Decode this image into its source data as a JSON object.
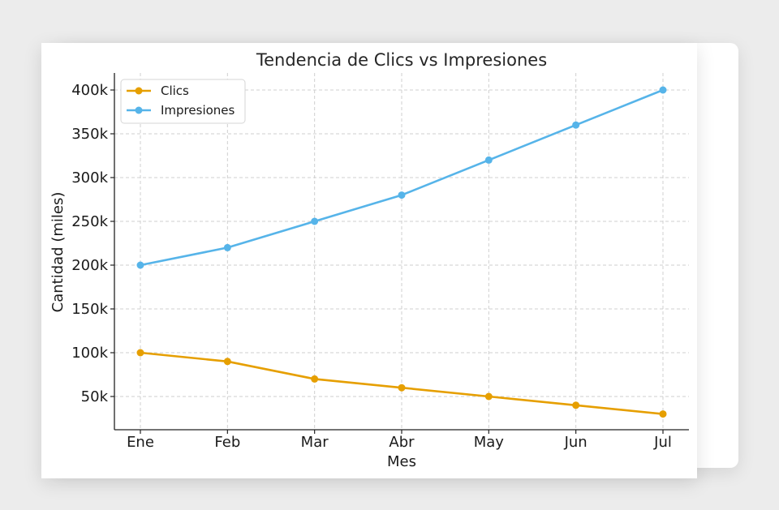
{
  "chart_data": {
    "type": "line",
    "title": "Tendencia de Clics vs Impresiones",
    "xlabel": "Mes",
    "ylabel": "Cantidad (miles)",
    "categories": [
      "Ene",
      "Feb",
      "Mar",
      "Abr",
      "May",
      "Jun",
      "Jul"
    ],
    "y_ticks": [
      50000,
      100000,
      150000,
      200000,
      250000,
      300000,
      350000,
      400000
    ],
    "y_tick_labels": [
      "50k",
      "100k",
      "150k",
      "200k",
      "250k",
      "300k",
      "350k",
      "400k"
    ],
    "ylim": [
      10000,
      420000
    ],
    "grid": true,
    "legend_position": "top-left",
    "series": [
      {
        "name": "Clics",
        "color": "#E69F00",
        "values": [
          100000,
          90000,
          70000,
          60000,
          50000,
          40000,
          30000
        ]
      },
      {
        "name": "Impresiones",
        "color": "#56B4E9",
        "values": [
          200000,
          220000,
          250000,
          280000,
          320000,
          360000,
          400000
        ]
      }
    ]
  }
}
